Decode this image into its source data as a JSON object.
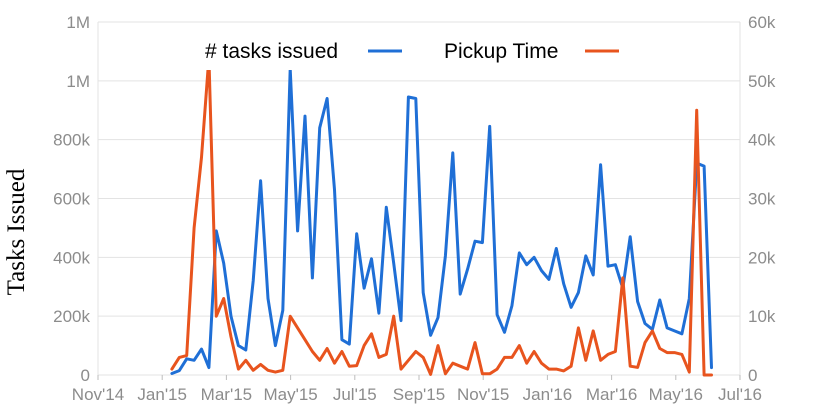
{
  "chart_data": {
    "type": "line",
    "ylabel": "Tasks Issued",
    "y_left_ticks": [
      "0",
      "200k",
      "400k",
      "600k",
      "800k",
      "1M",
      "1M"
    ],
    "y_right_ticks": [
      "0",
      "10k",
      "20k",
      "30k",
      "40k",
      "50k",
      "60k"
    ],
    "ylim_left": [
      0,
      1200000
    ],
    "ylim_right": [
      0,
      60000
    ],
    "x_ticks": [
      "Nov'14",
      "Jan'15",
      "Mar'15",
      "May'15",
      "Jul'15",
      "Sep'15",
      "Nov'15",
      "Jan'16",
      "Mar'16",
      "May'16",
      "Jul'16"
    ],
    "xlim": [
      "2014-11-01",
      "2016-07-01"
    ],
    "grid": "horizontal",
    "legend_position": "top",
    "series": [
      {
        "name": "# tasks issued",
        "axis": "left",
        "color": "#1f6fd6",
        "x": [
          "2015-01-10",
          "2015-01-17",
          "2015-01-24",
          "2015-01-31",
          "2015-02-07",
          "2015-02-14",
          "2015-02-21",
          "2015-02-28",
          "2015-03-07",
          "2015-03-14",
          "2015-03-21",
          "2015-03-28",
          "2015-04-04",
          "2015-04-11",
          "2015-04-18",
          "2015-04-25",
          "2015-05-02",
          "2015-05-09",
          "2015-05-16",
          "2015-05-23",
          "2015-05-30",
          "2015-06-06",
          "2015-06-13",
          "2015-06-20",
          "2015-06-27",
          "2015-07-04",
          "2015-07-11",
          "2015-07-18",
          "2015-07-25",
          "2015-08-01",
          "2015-08-08",
          "2015-08-15",
          "2015-08-22",
          "2015-08-29",
          "2015-09-05",
          "2015-09-12",
          "2015-09-19",
          "2015-09-26",
          "2015-10-03",
          "2015-10-10",
          "2015-10-17",
          "2015-10-24",
          "2015-10-31",
          "2015-11-07",
          "2015-11-14",
          "2015-11-21",
          "2015-11-28",
          "2015-12-05",
          "2015-12-12",
          "2015-12-19",
          "2015-12-26",
          "2016-01-02",
          "2016-01-09",
          "2016-01-16",
          "2016-01-23",
          "2016-01-30",
          "2016-02-06",
          "2016-02-13",
          "2016-02-20",
          "2016-02-27",
          "2016-03-05",
          "2016-03-12",
          "2016-03-19",
          "2016-03-26",
          "2016-04-02",
          "2016-04-09",
          "2016-04-16",
          "2016-04-23",
          "2016-04-30",
          "2016-05-07",
          "2016-05-14",
          "2016-05-21",
          "2016-05-28",
          "2016-06-04"
        ],
        "values": [
          5000,
          15000,
          55000,
          50000,
          88000,
          25000,
          490000,
          380000,
          200000,
          100000,
          85000,
          320000,
          660000,
          260000,
          100000,
          220000,
          1040000,
          490000,
          880000,
          330000,
          840000,
          940000,
          630000,
          120000,
          105000,
          480000,
          295000,
          395000,
          210000,
          570000,
          380000,
          185000,
          945000,
          940000,
          280000,
          135000,
          195000,
          405000,
          755000,
          275000,
          360000,
          455000,
          450000,
          845000,
          205000,
          145000,
          235000,
          415000,
          375000,
          400000,
          355000,
          325000,
          430000,
          310000,
          230000,
          280000,
          405000,
          340000,
          715000,
          370000,
          375000,
          295000,
          470000,
          250000,
          175000,
          155000,
          255000,
          160000,
          150000,
          140000,
          260000,
          720000,
          710000,
          25000
        ]
      },
      {
        "name": "Pickup Time",
        "axis": "right",
        "color": "#e8541e",
        "x": [
          "2015-01-10",
          "2015-01-17",
          "2015-01-24",
          "2015-01-31",
          "2015-02-07",
          "2015-02-14",
          "2015-02-21",
          "2015-02-28",
          "2015-03-07",
          "2015-03-14",
          "2015-03-21",
          "2015-03-28",
          "2015-04-04",
          "2015-04-11",
          "2015-04-18",
          "2015-04-25",
          "2015-05-02",
          "2015-05-09",
          "2015-05-16",
          "2015-05-23",
          "2015-05-30",
          "2015-06-06",
          "2015-06-13",
          "2015-06-20",
          "2015-06-27",
          "2015-07-04",
          "2015-07-11",
          "2015-07-18",
          "2015-07-25",
          "2015-08-01",
          "2015-08-08",
          "2015-08-15",
          "2015-08-22",
          "2015-08-29",
          "2015-09-05",
          "2015-09-12",
          "2015-09-19",
          "2015-09-26",
          "2015-10-03",
          "2015-10-10",
          "2015-10-17",
          "2015-10-24",
          "2015-10-31",
          "2015-11-07",
          "2015-11-14",
          "2015-11-21",
          "2015-11-28",
          "2015-12-05",
          "2015-12-12",
          "2015-12-19",
          "2015-12-26",
          "2016-01-02",
          "2016-01-09",
          "2016-01-16",
          "2016-01-23",
          "2016-01-30",
          "2016-02-06",
          "2016-02-13",
          "2016-02-20",
          "2016-02-27",
          "2016-03-05",
          "2016-03-12",
          "2016-03-19",
          "2016-03-26",
          "2016-04-02",
          "2016-04-09",
          "2016-04-16",
          "2016-04-23",
          "2016-04-30",
          "2016-05-07",
          "2016-05-14",
          "2016-05-21",
          "2016-05-28",
          "2016-06-04"
        ],
        "values": [
          1000,
          3000,
          3300,
          25000,
          37000,
          54000,
          10000,
          13000,
          6500,
          1000,
          2500,
          800,
          1800,
          800,
          500,
          800,
          10000,
          8000,
          6000,
          4000,
          2500,
          4500,
          2000,
          4000,
          1500,
          1600,
          5000,
          7000,
          3000,
          3500,
          10000,
          1000,
          2500,
          4000,
          3000,
          100,
          5000,
          200,
          2000,
          1500,
          1000,
          5500,
          200,
          200,
          1000,
          3000,
          3000,
          5000,
          2000,
          4000,
          2000,
          1000,
          1000,
          700,
          1500,
          8000,
          2500,
          7500,
          2500,
          3500,
          4000,
          16500,
          1500,
          1300,
          5500,
          7500,
          4500,
          3800,
          3800,
          3500,
          500,
          45000,
          0,
          0
        ]
      }
    ]
  }
}
